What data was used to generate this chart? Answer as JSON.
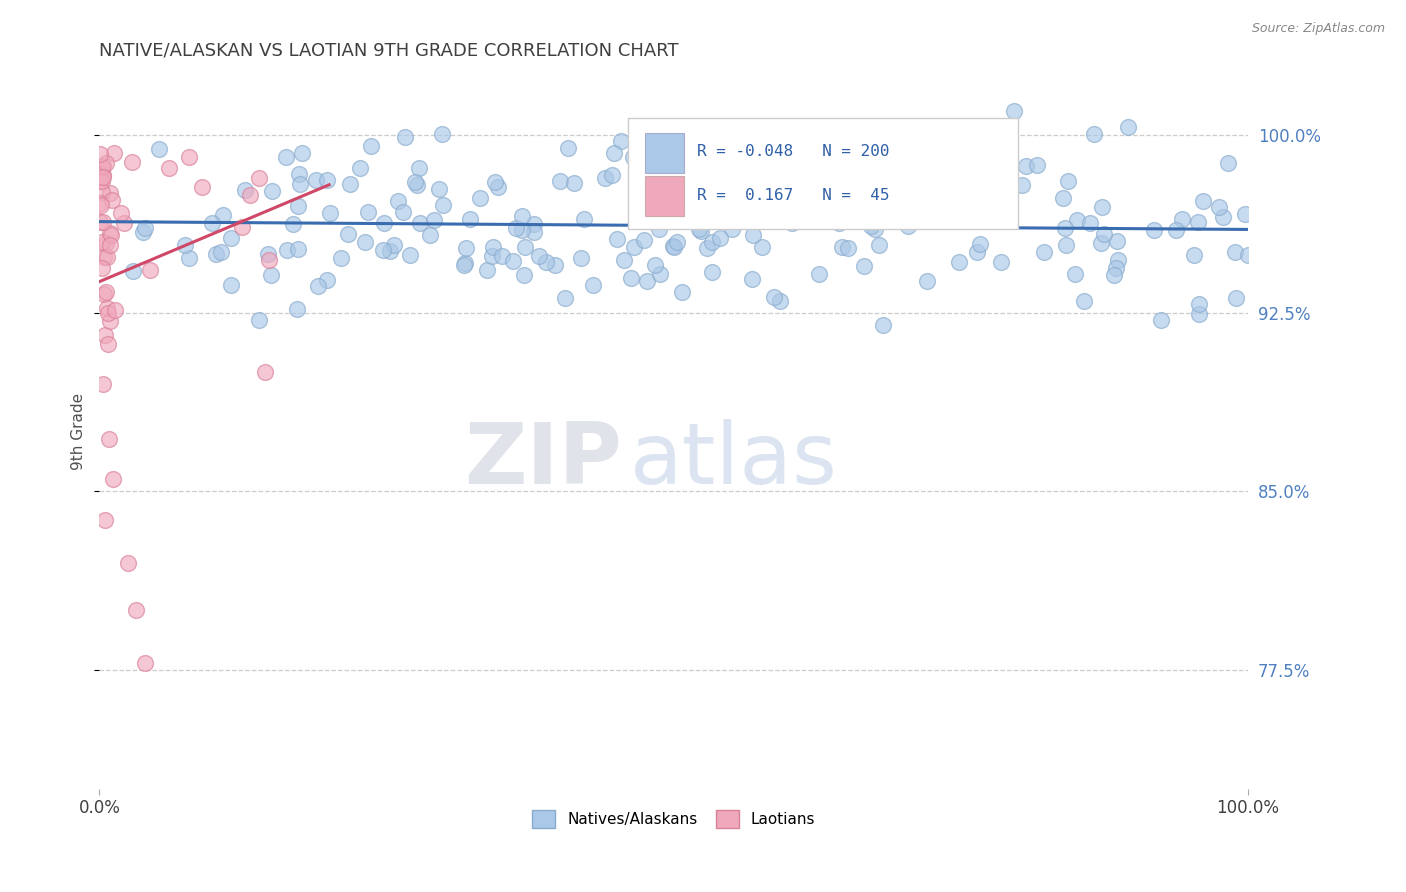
{
  "title": "NATIVE/ALASKAN VS LAOTIAN 9TH GRADE CORRELATION CHART",
  "source_text": "Source: ZipAtlas.com",
  "ylabel": "9th Grade",
  "xlim": [
    0.0,
    1.0
  ],
  "ylim": [
    0.725,
    1.025
  ],
  "yticks": [
    0.775,
    0.85,
    0.925,
    1.0
  ],
  "ytick_labels": [
    "77.5%",
    "85.0%",
    "92.5%",
    "100.0%"
  ],
  "xtick_labels": [
    "0.0%",
    "100.0%"
  ],
  "blue_color": "#aac8e8",
  "blue_edge_color": "#88aacc",
  "pink_color": "#f0a8bc",
  "pink_edge_color": "#d88098",
  "blue_line_color": "#3a6cb0",
  "pink_line_color": "#d04868",
  "watermark_zip": "ZIP",
  "watermark_atlas": "atlas",
  "watermark_zip_color": "#c8cdd8",
  "watermark_atlas_color": "#b0c4de",
  "background_color": "#ffffff",
  "grid_color": "#cccccc",
  "title_color": "#404040",
  "right_label_color": "#5080c0",
  "source_color": "#888888",
  "legend_text_color": "#3060a8",
  "seed": 42,
  "n_blue": 200,
  "n_pink": 45
}
